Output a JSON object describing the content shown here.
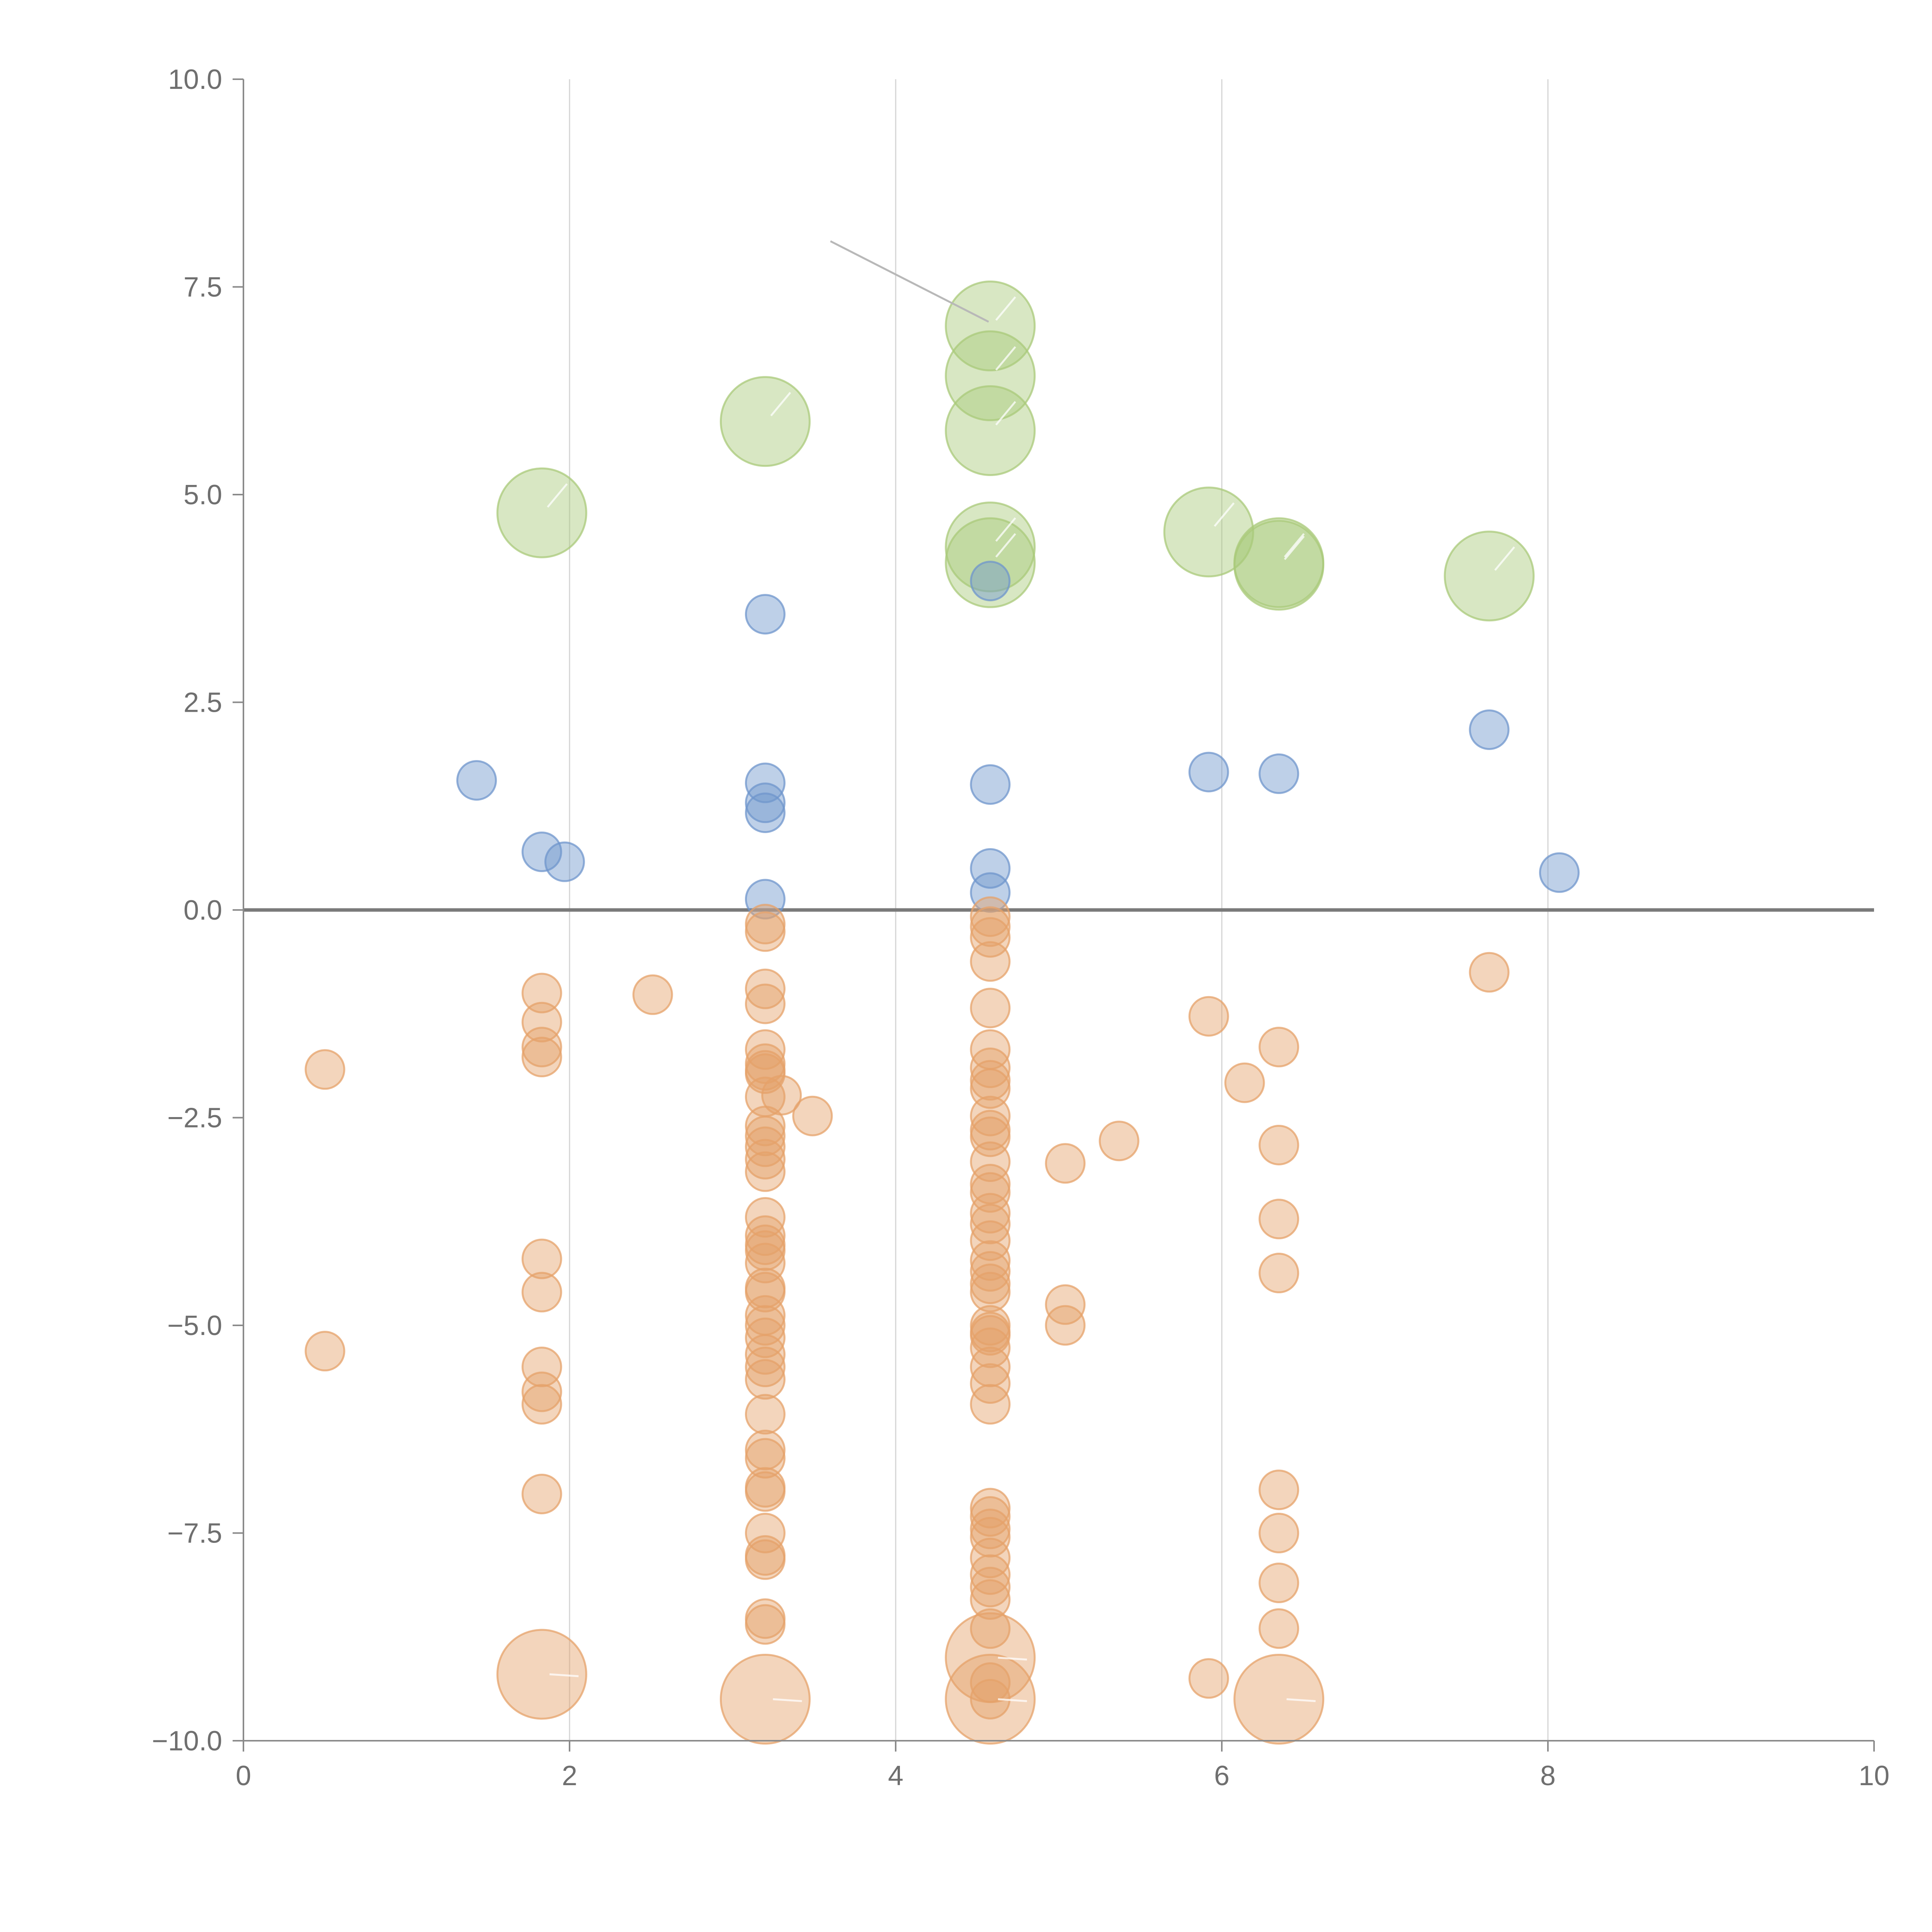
{
  "chart_data": {
    "type": "scatter",
    "title": "",
    "xlabel": "",
    "ylabel": "",
    "xlim": [
      0,
      10
    ],
    "ylim": [
      -10,
      10
    ],
    "x_ticks": [
      0,
      2,
      4,
      6,
      8,
      10
    ],
    "x_tick_labels": [
      "0",
      "2",
      "4",
      "6",
      "8",
      "10"
    ],
    "y_ticks": [
      10,
      7.5,
      5,
      2.5,
      0,
      -2.5,
      -5,
      -7.5,
      -10
    ],
    "y_tick_labels": [
      "10.0",
      "7.5",
      "5.0",
      "2.5",
      "0.0",
      "−2.5",
      "−5.0",
      "−7.5",
      "−10.0"
    ],
    "grid": "vertical",
    "reference_line_y": 0,
    "annotation_leader": {
      "from": [
        3.6,
        8.05
      ],
      "to": [
        4.57,
        7.08
      ]
    },
    "series": [
      {
        "name": "green",
        "color": "#a9c97a",
        "marker_size": "large",
        "points": [
          [
            1.83,
            4.78
          ],
          [
            3.2,
            5.88
          ],
          [
            4.58,
            7.03
          ],
          [
            4.58,
            6.43
          ],
          [
            4.58,
            5.77
          ],
          [
            4.58,
            4.37
          ],
          [
            4.58,
            4.18
          ],
          [
            5.92,
            4.55
          ],
          [
            6.35,
            4.18
          ],
          [
            6.35,
            4.15
          ],
          [
            7.64,
            4.02
          ]
        ]
      },
      {
        "name": "blue",
        "color": "#6f96cc",
        "marker_size": "small",
        "points": [
          [
            1.43,
            1.56
          ],
          [
            1.83,
            0.7
          ],
          [
            1.97,
            0.58
          ],
          [
            3.2,
            3.56
          ],
          [
            3.2,
            1.53
          ],
          [
            3.2,
            1.29
          ],
          [
            3.2,
            1.17
          ],
          [
            3.2,
            0.13
          ],
          [
            4.58,
            3.96
          ],
          [
            4.58,
            1.51
          ],
          [
            4.58,
            0.5
          ],
          [
            4.58,
            0.21
          ],
          [
            5.92,
            1.66
          ],
          [
            6.35,
            1.64
          ],
          [
            7.64,
            2.17
          ],
          [
            8.07,
            0.45
          ]
        ]
      },
      {
        "name": "orange",
        "color": "#e5a16a",
        "marker_size": "small",
        "points": [
          [
            0.5,
            -1.92
          ],
          [
            0.5,
            -5.31
          ],
          [
            1.83,
            -1.0
          ],
          [
            1.83,
            -1.35
          ],
          [
            1.83,
            -1.65
          ],
          [
            1.83,
            -1.77
          ],
          [
            1.83,
            -4.2
          ],
          [
            1.83,
            -4.6
          ],
          [
            1.83,
            -5.5
          ],
          [
            1.83,
            -5.8
          ],
          [
            1.83,
            -5.95
          ],
          [
            1.83,
            -7.03
          ],
          [
            2.51,
            -1.02
          ],
          [
            3.2,
            -0.17
          ],
          [
            3.2,
            -0.26
          ],
          [
            3.2,
            -0.95
          ],
          [
            3.2,
            -1.13
          ],
          [
            3.2,
            -1.68
          ],
          [
            3.2,
            -1.85
          ],
          [
            3.2,
            -1.93
          ],
          [
            3.2,
            -1.97
          ],
          [
            3.2,
            -2.25
          ],
          [
            3.2,
            -2.6
          ],
          [
            3.2,
            -2.72
          ],
          [
            3.2,
            -2.85
          ],
          [
            3.2,
            -3.0
          ],
          [
            3.2,
            -3.15
          ],
          [
            3.2,
            -3.7
          ],
          [
            3.2,
            -3.92
          ],
          [
            3.2,
            -4.03
          ],
          [
            3.2,
            -4.1
          ],
          [
            3.2,
            -4.25
          ],
          [
            3.2,
            -4.55
          ],
          [
            3.2,
            -4.6
          ],
          [
            3.2,
            -4.88
          ],
          [
            3.2,
            -5.0
          ],
          [
            3.2,
            -5.15
          ],
          [
            3.2,
            -5.35
          ],
          [
            3.2,
            -5.5
          ],
          [
            3.2,
            -5.65
          ],
          [
            3.2,
            -6.07
          ],
          [
            3.2,
            -6.5
          ],
          [
            3.2,
            -6.6
          ],
          [
            3.2,
            -6.95
          ],
          [
            3.2,
            -7.0
          ],
          [
            3.2,
            -7.5
          ],
          [
            3.2,
            -7.77
          ],
          [
            3.2,
            -7.82
          ],
          [
            3.2,
            -8.53
          ],
          [
            3.2,
            -8.6
          ],
          [
            3.3,
            -2.23
          ],
          [
            3.49,
            -2.48
          ],
          [
            4.58,
            -0.08
          ],
          [
            4.58,
            -0.2
          ],
          [
            4.58,
            -0.33
          ],
          [
            4.58,
            -0.62
          ],
          [
            4.58,
            -1.18
          ],
          [
            4.58,
            -1.68
          ],
          [
            4.58,
            -1.9
          ],
          [
            4.58,
            -2.05
          ],
          [
            4.58,
            -2.15
          ],
          [
            4.58,
            -2.48
          ],
          [
            4.58,
            -2.65
          ],
          [
            4.58,
            -2.73
          ],
          [
            4.58,
            -3.03
          ],
          [
            4.58,
            -3.3
          ],
          [
            4.58,
            -3.4
          ],
          [
            4.58,
            -3.65
          ],
          [
            4.58,
            -3.78
          ],
          [
            4.58,
            -3.98
          ],
          [
            4.58,
            -4.22
          ],
          [
            4.58,
            -4.35
          ],
          [
            4.58,
            -4.5
          ],
          [
            4.58,
            -4.6
          ],
          [
            4.58,
            -5.0
          ],
          [
            4.58,
            -5.08
          ],
          [
            4.58,
            -5.12
          ],
          [
            4.58,
            -5.27
          ],
          [
            4.58,
            -5.5
          ],
          [
            4.58,
            -5.7
          ],
          [
            4.58,
            -5.95
          ],
          [
            4.58,
            -7.2
          ],
          [
            4.58,
            -7.3
          ],
          [
            4.58,
            -7.45
          ],
          [
            4.58,
            -7.55
          ],
          [
            4.58,
            -7.8
          ],
          [
            4.58,
            -8.0
          ],
          [
            4.58,
            -8.15
          ],
          [
            4.58,
            -8.3
          ],
          [
            4.58,
            -8.65
          ],
          [
            4.58,
            -9.3
          ],
          [
            4.58,
            -9.5
          ],
          [
            5.04,
            -3.05
          ],
          [
            5.04,
            -4.75
          ],
          [
            5.04,
            -5.0
          ],
          [
            5.37,
            -2.78
          ],
          [
            5.92,
            -1.28
          ],
          [
            5.92,
            -9.25
          ],
          [
            6.14,
            -2.08
          ],
          [
            6.35,
            -1.65
          ],
          [
            6.35,
            -2.83
          ],
          [
            6.35,
            -3.72
          ],
          [
            6.35,
            -4.37
          ],
          [
            6.35,
            -6.98
          ],
          [
            6.35,
            -7.5
          ],
          [
            6.35,
            -8.1
          ],
          [
            6.35,
            -8.65
          ],
          [
            7.64,
            -0.75
          ]
        ],
        "large_points": [
          [
            1.83,
            -9.2
          ],
          [
            3.2,
            -9.5
          ],
          [
            4.58,
            -9.0
          ],
          [
            4.58,
            -9.5
          ],
          [
            6.35,
            -9.5
          ]
        ]
      }
    ]
  }
}
